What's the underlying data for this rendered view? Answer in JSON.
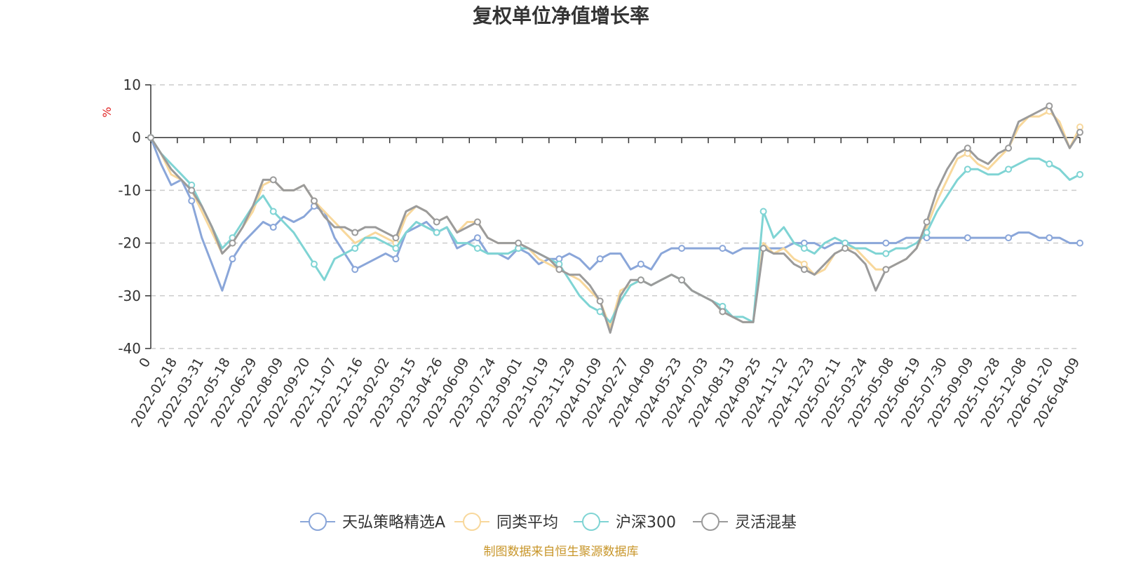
{
  "colors": {
    "fund": "#8aa6d9",
    "peer_avg": "#f8d89c",
    "csi300": "#7fd4d4",
    "flexible": "#9b9b9b",
    "unit": "#e02020",
    "source": "#c8962a"
  },
  "source_text": "制图数据来自恒生聚源数据库",
  "chart_data": {
    "type": "line",
    "title": "复权单位净值增长率",
    "ylabel": "%",
    "ylim": [
      -40,
      10
    ],
    "yticks": [
      "10",
      "0",
      "-10",
      "-20",
      "-30",
      "-40"
    ],
    "ytick_values": [
      10,
      0,
      -10,
      -20,
      -30,
      -40
    ],
    "grid": true,
    "legend_position": "bottom",
    "x_tick_labels": [
      "0",
      "2022-02-18",
      "2022-03-31",
      "2022-05-18",
      "2022-06-29",
      "2022-08-09",
      "2022-09-20",
      "2022-11-07",
      "2022-12-16",
      "2023-02-02",
      "2023-03-15",
      "2023-04-26",
      "2023-06-09",
      "2023-07-24",
      "2023-09-01",
      "2023-10-19",
      "2023-11-29",
      "2024-01-09",
      "2024-02-27",
      "2024-04-09",
      "2024-05-23",
      "2024-07-03",
      "2024-08-13",
      "2024-09-25",
      "2024-11-12",
      "2024-12-23",
      "2025-02-11",
      "2025-03-24",
      "2025-05-08",
      "2025-06-19",
      "2025-07-30",
      "2025-09-09",
      "2025-10-28",
      "2025-12-08",
      "2026-01-20",
      "2026-04-09"
    ],
    "series": [
      {
        "name": "天弘策略精选A",
        "color_key": "fund",
        "values": [
          0,
          -5,
          -9,
          -8,
          -12,
          -19,
          -24,
          -29,
          -23,
          -20,
          -18,
          -16,
          -17,
          -15,
          -16,
          -15,
          -13,
          -14,
          -19,
          -22,
          -25,
          -24,
          -23,
          -22,
          -23,
          -18,
          -17,
          -16,
          -18,
          -17,
          -21,
          -20,
          -19,
          -22,
          -22,
          -23,
          -21,
          -22,
          -24,
          -23,
          -23,
          -22,
          -23,
          -25,
          -23,
          -22,
          -22,
          -25,
          -24,
          -25,
          -22,
          -21,
          -21,
          -21,
          -21,
          -21,
          -21,
          -22,
          -21,
          -21,
          -21,
          -21,
          -21,
          -20,
          -20,
          -20,
          -21,
          -20,
          -20,
          -20,
          -20,
          -20,
          -20,
          -20,
          -19,
          -19,
          -19,
          -19,
          -19,
          -19,
          -19,
          -19,
          -19,
          -19,
          -19,
          -18,
          -18,
          -19,
          -19,
          -19,
          -20,
          -20
        ],
        "markers": [
          0,
          4,
          8,
          12,
          16,
          20,
          24,
          28,
          32,
          36,
          40,
          44,
          48,
          52,
          56,
          60,
          64,
          68,
          72,
          76,
          80,
          84,
          88,
          91
        ]
      },
      {
        "name": "同类平均",
        "color_key": "peer_avg",
        "values": [
          0,
          -3,
          -7,
          -8,
          -10,
          -14,
          -18,
          -22,
          -20,
          -17,
          -14,
          -9,
          -8,
          -10,
          -10,
          -9,
          -12,
          -14,
          -16,
          -18,
          -20,
          -19,
          -18,
          -19,
          -20,
          -15,
          -13,
          -14,
          -16,
          -15,
          -18,
          -16,
          -16,
          -19,
          -20,
          -20,
          -20,
          -21,
          -23,
          -24,
          -25,
          -26,
          -27,
          -29,
          -31,
          -36,
          -29,
          -28,
          -27,
          -28,
          -27,
          -26,
          -27,
          -29,
          -30,
          -31,
          -33,
          -34,
          -35,
          -35,
          -20,
          -22,
          -21,
          -23,
          -24,
          -26,
          -25,
          -22,
          -21,
          -21,
          -23,
          -25,
          -25,
          -24,
          -23,
          -21,
          -17,
          -12,
          -8,
          -4,
          -3,
          -5,
          -6,
          -4,
          -2,
          2,
          4,
          4,
          5,
          3,
          -2,
          2
        ],
        "markers": [
          0,
          8,
          16,
          24,
          32,
          40,
          48,
          56,
          64,
          72,
          80,
          88,
          91
        ]
      },
      {
        "name": "沪深300",
        "color_key": "csi300",
        "values": [
          0,
          -3,
          -5,
          -7,
          -9,
          -13,
          -17,
          -21,
          -19,
          -16,
          -13,
          -11,
          -14,
          -16,
          -18,
          -21,
          -24,
          -27,
          -23,
          -22,
          -21,
          -19,
          -19,
          -20,
          -21,
          -18,
          -16,
          -17,
          -18,
          -17,
          -20,
          -20,
          -21,
          -22,
          -22,
          -22,
          -21,
          -21,
          -22,
          -23,
          -24,
          -27,
          -30,
          -32,
          -33,
          -35,
          -31,
          -28,
          -27,
          -28,
          -27,
          -26,
          -27,
          -29,
          -30,
          -31,
          -32,
          -34,
          -34,
          -35,
          -14,
          -19,
          -17,
          -20,
          -21,
          -22,
          -20,
          -19,
          -20,
          -21,
          -21,
          -22,
          -22,
          -21,
          -21,
          -20,
          -18,
          -14,
          -11,
          -8,
          -6,
          -6,
          -7,
          -7,
          -6,
          -5,
          -4,
          -4,
          -5,
          -6,
          -8,
          -7
        ],
        "markers": [
          0,
          4,
          8,
          12,
          16,
          20,
          24,
          28,
          32,
          36,
          40,
          44,
          48,
          52,
          56,
          60,
          64,
          68,
          72,
          76,
          80,
          84,
          88,
          91
        ]
      },
      {
        "name": "灵活混基",
        "color_key": "flexible",
        "values": [
          0,
          -3,
          -6,
          -8,
          -10,
          -13,
          -17,
          -22,
          -20,
          -17,
          -13,
          -8,
          -8,
          -10,
          -10,
          -9,
          -12,
          -15,
          -17,
          -17,
          -18,
          -17,
          -17,
          -18,
          -19,
          -14,
          -13,
          -14,
          -16,
          -15,
          -18,
          -17,
          -16,
          -19,
          -20,
          -20,
          -20,
          -21,
          -22,
          -23,
          -25,
          -26,
          -26,
          -28,
          -31,
          -37,
          -30,
          -27,
          -27,
          -28,
          -27,
          -26,
          -27,
          -29,
          -30,
          -31,
          -33,
          -34,
          -35,
          -35,
          -21,
          -22,
          -22,
          -24,
          -25,
          -26,
          -24,
          -22,
          -21,
          -22,
          -24,
          -29,
          -25,
          -24,
          -23,
          -21,
          -16,
          -10,
          -6,
          -3,
          -2,
          -4,
          -5,
          -3,
          -2,
          3,
          4,
          5,
          6,
          2,
          -2,
          1
        ],
        "markers": [
          0,
          4,
          8,
          12,
          16,
          20,
          24,
          28,
          32,
          36,
          40,
          44,
          48,
          52,
          56,
          60,
          64,
          68,
          72,
          76,
          80,
          84,
          88,
          91
        ]
      }
    ]
  }
}
